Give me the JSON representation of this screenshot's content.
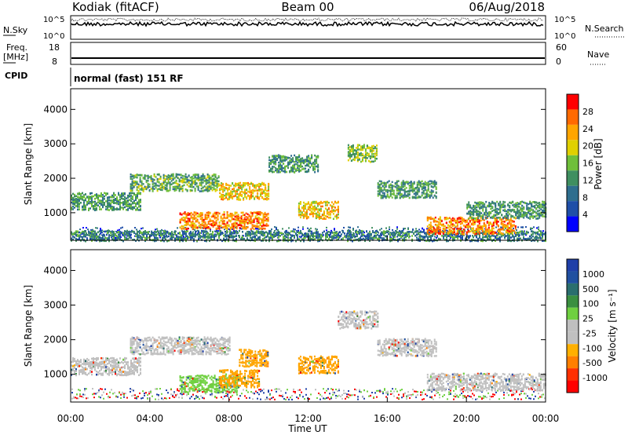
{
  "header": {
    "station": "Kodiak (fitACF)",
    "beam": "Beam 00",
    "date": "06/Aug/2018"
  },
  "aux_panels": {
    "nsky_label": "N.Sky",
    "nsearch_label": "N.Search",
    "nsky_ticks": [
      "10^5",
      "10^0"
    ],
    "nsearch_ticks": [
      "10^5",
      "10^0"
    ],
    "freq_label_1": "Freq.",
    "freq_label_2": "[MHz]",
    "freq_ticks": [
      "18",
      "8"
    ],
    "nave_label": "Nave",
    "nave_ticks": [
      "60",
      "0"
    ],
    "cpid_label": "CPID",
    "cpid_text": "normal (fast) 151 RF"
  },
  "colors": {
    "power": [
      "#0000ff",
      "#1f4fa8",
      "#2e6e8e",
      "#3f8f60",
      "#6fbf3a",
      "#e0d000",
      "#ffa500",
      "#ff6a00",
      "#ff0000"
    ],
    "velocity": [
      "#1f3fa8",
      "#2050a0",
      "#2a6e6e",
      "#3a8f40",
      "#6fd040",
      "#bfbfbf",
      "#c0c0c0",
      "#ffb000",
      "#ff7f00",
      "#ff3000",
      "#ff0000"
    ]
  },
  "chart_data": [
    {
      "type": "heatmap",
      "panel": "power",
      "xlabel": "",
      "ylabel": "Slant Range [km]",
      "xlim_hours": [
        0,
        24
      ],
      "ylim": [
        200,
        4600
      ],
      "yticks": [
        "4000",
        "3000",
        "2000",
        "1000"
      ],
      "colorbar_label": "Power [dB]",
      "colorbar_ticks": [
        "28",
        "24",
        "20",
        "16",
        "12",
        "8",
        "4"
      ],
      "features": [
        {
          "t_start": 0,
          "t_end": 24,
          "range_km": 250,
          "level": "blue-green noise band"
        },
        {
          "t_start": 0,
          "t_end": 3.5,
          "range_km": 1350,
          "level": 12
        },
        {
          "t_start": 3,
          "t_end": 7.5,
          "range_km": 1900,
          "level": 14
        },
        {
          "t_start": 5.5,
          "t_end": 10,
          "range_km": 800,
          "level": 26
        },
        {
          "t_start": 7.5,
          "t_end": 10,
          "range_km": 1650,
          "level": 22
        },
        {
          "t_start": 10,
          "t_end": 12.5,
          "range_km": 2450,
          "level": 12
        },
        {
          "t_start": 11.5,
          "t_end": 13.5,
          "range_km": 1100,
          "level": 22
        },
        {
          "t_start": 14,
          "t_end": 15.5,
          "range_km": 2750,
          "level": 16
        },
        {
          "t_start": 15.5,
          "t_end": 18.5,
          "range_km": 1700,
          "level": 12
        },
        {
          "t_start": 18,
          "t_end": 22.5,
          "range_km": 650,
          "level": 26
        },
        {
          "t_start": 20,
          "t_end": 24,
          "range_km": 1100,
          "level": 12
        }
      ]
    },
    {
      "type": "heatmap",
      "panel": "velocity",
      "xlabel": "Time UT",
      "ylabel": "Slant Range [km]",
      "xlim_hours": [
        0,
        24
      ],
      "ylim": [
        200,
        4600
      ],
      "yticks": [
        "4000",
        "3000",
        "2000",
        "1000"
      ],
      "xticks": [
        "00:00",
        "04:00",
        "08:00",
        "12:00",
        "16:00",
        "20:00",
        "00:00"
      ],
      "colorbar_label": "Velocity [m s⁻¹]",
      "colorbar_ticks": [
        "1000",
        "500",
        "100",
        "25",
        "-25",
        "-100",
        "-500",
        "-1000"
      ],
      "features": [
        {
          "t_start": 0,
          "t_end": 3.5,
          "range_km": 1250,
          "velocity": 0
        },
        {
          "t_start": 3,
          "t_end": 8,
          "range_km": 1850,
          "velocity": 0
        },
        {
          "t_start": 5.5,
          "t_end": 8.5,
          "range_km": 750,
          "velocity": 50
        },
        {
          "t_start": 7.5,
          "t_end": 9.5,
          "range_km": 900,
          "velocity": -100
        },
        {
          "t_start": 8.5,
          "t_end": 10,
          "range_km": 1500,
          "velocity": -50
        },
        {
          "t_start": 11.5,
          "t_end": 13.5,
          "range_km": 1300,
          "velocity": -150
        },
        {
          "t_start": 13.5,
          "t_end": 15.5,
          "range_km": 2600,
          "velocity": 0
        },
        {
          "t_start": 15.5,
          "t_end": 18.5,
          "range_km": 1800,
          "velocity": 0
        },
        {
          "t_start": 18,
          "t_end": 24,
          "range_km": 800,
          "velocity": 0
        }
      ]
    }
  ]
}
